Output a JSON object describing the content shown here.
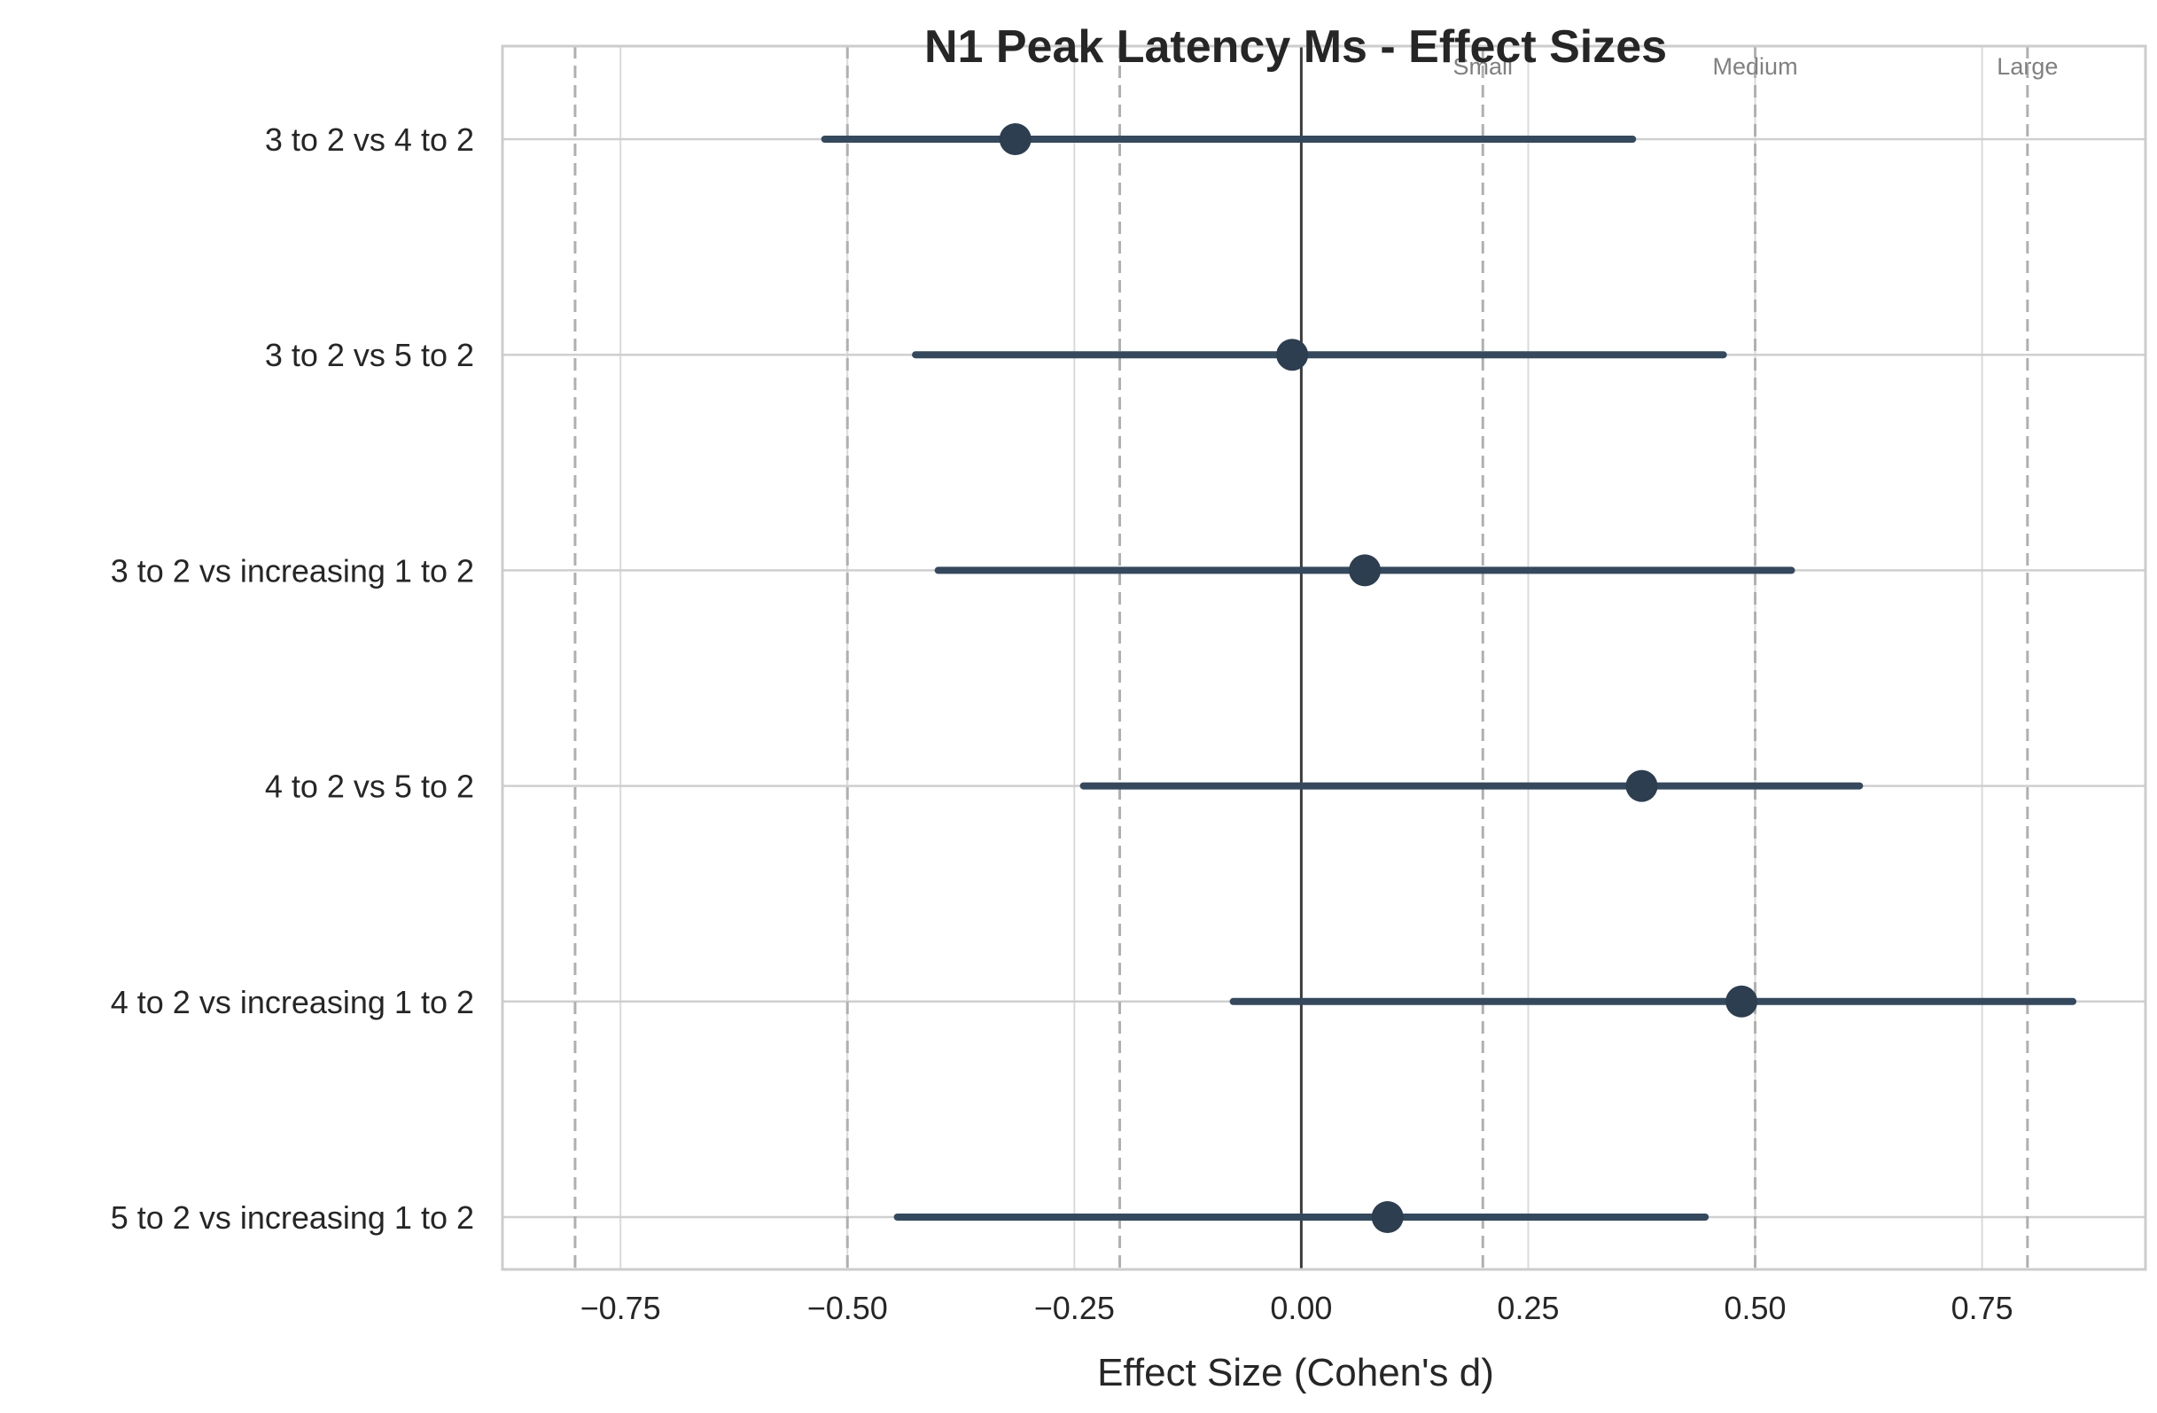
{
  "chart_data": {
    "type": "forest",
    "title": "N1 Peak Latency Ms - Effect Sizes",
    "xlabel": "Effect Size (Cohen's d)",
    "ylabel": "",
    "xlim": [
      -0.88,
      0.93
    ],
    "xticks": [
      -0.75,
      -0.5,
      -0.25,
      0.0,
      0.25,
      0.5,
      0.75
    ],
    "xtick_labels": [
      "−0.75",
      "−0.50",
      "−0.25",
      "0.00",
      "0.25",
      "0.50",
      "0.75"
    ],
    "grid": true,
    "reference_line": 0.0,
    "thresholds": [
      {
        "label": "Small",
        "value": 0.2
      },
      {
        "label": "Medium",
        "value": 0.5
      },
      {
        "label": "Large",
        "value": 0.8
      }
    ],
    "comparisons": [
      {
        "label": "5 to 2 vs increasing 1 to 2",
        "effect": 0.095,
        "ci_lower": -0.445,
        "ci_upper": 0.445
      },
      {
        "label": "4 to 2 vs increasing 1 to 2",
        "effect": 0.485,
        "ci_lower": -0.075,
        "ci_upper": 0.85
      },
      {
        "label": "4 to 2 vs 5 to 2",
        "effect": 0.375,
        "ci_lower": -0.24,
        "ci_upper": 0.615
      },
      {
        "label": "3 to 2 vs increasing 1 to 2",
        "effect": 0.07,
        "ci_lower": -0.4,
        "ci_upper": 0.54
      },
      {
        "label": "3 to 2 vs 5 to 2",
        "effect": -0.01,
        "ci_lower": -0.425,
        "ci_upper": 0.465
      },
      {
        "label": "3 to 2 vs 4 to 2",
        "effect": -0.315,
        "ci_lower": -0.525,
        "ci_upper": 0.365
      }
    ],
    "colors": {
      "marker": "#2c3e50",
      "ci_line": "#34495e",
      "zero_line": "#3c3c3c",
      "threshold_line": "#b0b0b0",
      "grid": "#dadada",
      "axes_frame": "#cccccc"
    }
  }
}
